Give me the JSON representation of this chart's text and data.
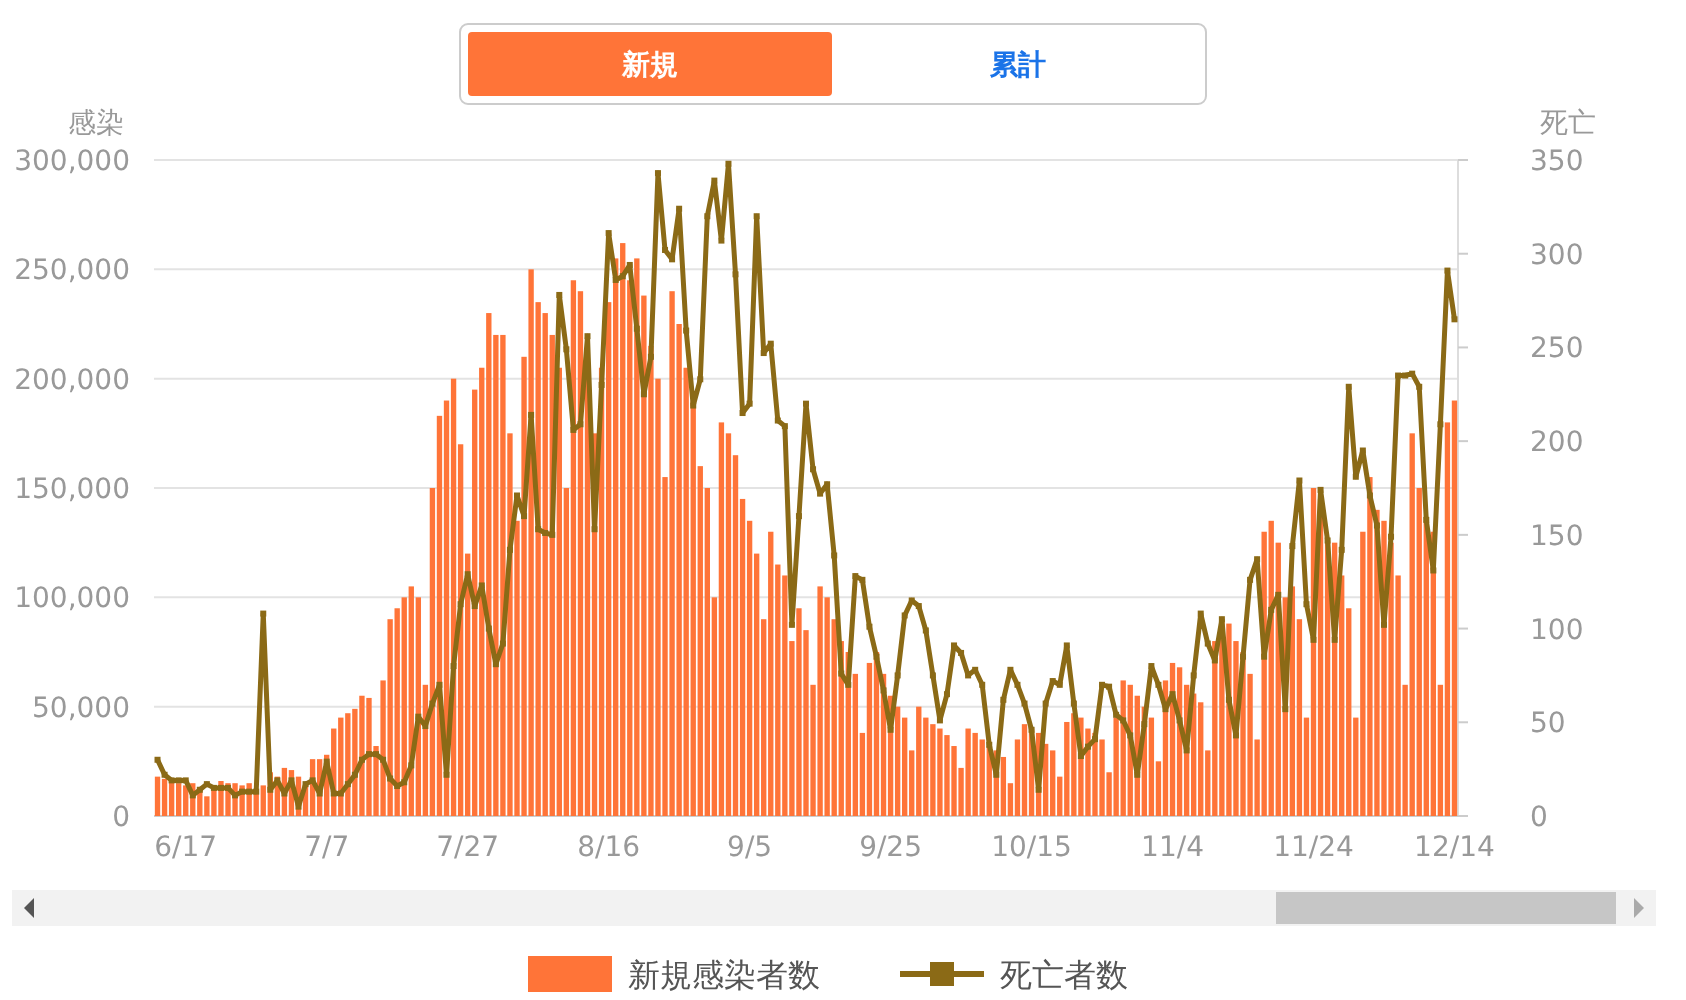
{
  "chart_data": {
    "type": "bar",
    "ylabel": "感染",
    "y2label": "死亡",
    "annotations": [
      "新規",
      "累計"
    ],
    "categories": [
      null,
      null,
      null,
      null,
      "6/17",
      null,
      null,
      null,
      null,
      null,
      null,
      null,
      null,
      null,
      null,
      null,
      null,
      null,
      null,
      null,
      null,
      null,
      null,
      null,
      "7/7",
      null,
      null,
      null,
      null,
      null,
      null,
      null,
      null,
      null,
      null,
      null,
      null,
      null,
      null,
      null,
      null,
      null,
      null,
      null,
      "7/27",
      null,
      null,
      null,
      null,
      null,
      null,
      null,
      null,
      null,
      null,
      null,
      null,
      null,
      null,
      null,
      null,
      null,
      null,
      null,
      "8/16",
      null,
      null,
      null,
      null,
      null,
      null,
      null,
      null,
      null,
      null,
      null,
      null,
      null,
      null,
      null,
      null,
      null,
      null,
      null,
      "9/5",
      null,
      null,
      null,
      null,
      null,
      null,
      null,
      null,
      null,
      null,
      null,
      null,
      null,
      null,
      null,
      null,
      null,
      null,
      null,
      "9/25",
      null,
      null,
      null,
      null,
      null,
      null,
      null,
      null,
      null,
      null,
      null,
      null,
      null,
      null,
      null,
      null,
      null,
      null,
      null,
      "10/15",
      null,
      null,
      null,
      null,
      null,
      null,
      null,
      null,
      null,
      null,
      null,
      null,
      null,
      null,
      null,
      null,
      null,
      null,
      null,
      "11/4",
      null,
      null,
      null,
      null,
      null,
      null,
      null,
      null,
      null,
      null,
      null,
      null,
      null,
      null,
      null,
      null,
      null,
      null,
      null,
      "11/24",
      null,
      null,
      null,
      null,
      null,
      null,
      null,
      null,
      null,
      null,
      null,
      null,
      null,
      null,
      null,
      null,
      null,
      null,
      null,
      "12/14"
    ],
    "series": [
      {
        "name": "新規感染者数",
        "color": "#ff7438",
        "values": [
          18000,
          17000,
          16000,
          15000,
          14000,
          15000,
          13000,
          9000,
          13000,
          16000,
          15000,
          15000,
          14000,
          15000,
          12000,
          14000,
          20000,
          18000,
          22000,
          21000,
          18000,
          14000,
          26000,
          26000,
          28000,
          40000,
          45000,
          47000,
          49000,
          55000,
          54000,
          32000,
          62000,
          90000,
          95000,
          100000,
          105000,
          100000,
          60000,
          150000,
          183000,
          190000,
          200000,
          170000,
          120000,
          195000,
          205000,
          230000,
          220000,
          220000,
          175000,
          135000,
          210000,
          250000,
          235000,
          230000,
          220000,
          205000,
          150000,
          245000,
          240000,
          200000,
          175000,
          205000,
          235000,
          255000,
          262000,
          245000,
          255000,
          238000,
          215000,
          200000,
          155000,
          240000,
          225000,
          205000,
          190000,
          160000,
          150000,
          100000,
          180000,
          175000,
          165000,
          145000,
          135000,
          120000,
          90000,
          130000,
          115000,
          110000,
          80000,
          95000,
          85000,
          60000,
          105000,
          100000,
          90000,
          80000,
          75000,
          65000,
          38000,
          70000,
          75000,
          65000,
          55000,
          50000,
          45000,
          30000,
          50000,
          45000,
          42000,
          40000,
          37000,
          32000,
          22000,
          40000,
          38000,
          35000,
          32000,
          30000,
          27000,
          15000,
          35000,
          42000,
          40000,
          38000,
          33000,
          30000,
          18000,
          43000,
          47000,
          45000,
          40000,
          38000,
          35000,
          20000,
          45000,
          62000,
          60000,
          55000,
          50000,
          45000,
          25000,
          62000,
          70000,
          68000,
          60000,
          56000,
          52000,
          30000,
          80000,
          90000,
          88000,
          80000,
          75000,
          65000,
          35000,
          130000,
          135000,
          125000,
          100000,
          105000,
          90000,
          45000,
          150000,
          145000,
          125000,
          125000,
          110000,
          95000,
          45000,
          130000,
          155000,
          140000,
          135000,
          125000,
          110000,
          60000,
          175000,
          150000,
          135000,
          130000,
          60000,
          180000,
          190000
        ]
      },
      {
        "name": "死亡者数",
        "type": "line",
        "axis": "y2",
        "color": "#8b6a16",
        "values": [
          30,
          22,
          19,
          19,
          19,
          11,
          14,
          17,
          15,
          15,
          15,
          11,
          13,
          13,
          13,
          108,
          14,
          19,
          12,
          19,
          5,
          17,
          19,
          12,
          29,
          12,
          12,
          17,
          22,
          30,
          33,
          33,
          30,
          20,
          16,
          18,
          27,
          53,
          48,
          60,
          70,
          22,
          80,
          113,
          129,
          112,
          123,
          100,
          81,
          92,
          142,
          171,
          160,
          214,
          153,
          151,
          150,
          278,
          249,
          206,
          209,
          256,
          153,
          230,
          311,
          286,
          288,
          294,
          260,
          225,
          245,
          343,
          302,
          297,
          324,
          259,
          219,
          233,
          320,
          339,
          307,
          348,
          289,
          215,
          220,
          320,
          247,
          252,
          211,
          208,
          102,
          160,
          220,
          185,
          172,
          177,
          139,
          76,
          70,
          128,
          126,
          101,
          85,
          67,
          46,
          75,
          107,
          115,
          112,
          99,
          75,
          51,
          65,
          91,
          87,
          75,
          78,
          70,
          38,
          22,
          62,
          78,
          70,
          60,
          46,
          14,
          60,
          72,
          70,
          91,
          60,
          32,
          37,
          41,
          70,
          69,
          54,
          51,
          43,
          22,
          49,
          80,
          70,
          57,
          65,
          51,
          35,
          75,
          108,
          92,
          83,
          105,
          62,
          43,
          85,
          126,
          137,
          85,
          110,
          118,
          57,
          144,
          179,
          113,
          94,
          174,
          147,
          94,
          142,
          229,
          181,
          195,
          171,
          155,
          102,
          149,
          235,
          235,
          236,
          229,
          158,
          131,
          209,
          291,
          265
        ]
      }
    ],
    "ylim": [
      0,
      300000
    ],
    "yticks": [
      0,
      {
        "value": 50000,
        "label": "50,000"
      },
      {
        "value": 100000,
        "label": "100,000"
      },
      {
        "value": 150000,
        "label": "150,000"
      },
      {
        "value": 200000,
        "label": "200,000"
      },
      {
        "value": 250000,
        "label": "250,000"
      },
      {
        "value": 300000,
        "label": "300,000"
      }
    ],
    "y2lim": [
      0,
      350
    ],
    "y2ticks": [
      0,
      50,
      100,
      150,
      200,
      250,
      300,
      350
    ],
    "grid": "y",
    "legend": "bottom",
    "marker": "square"
  }
}
